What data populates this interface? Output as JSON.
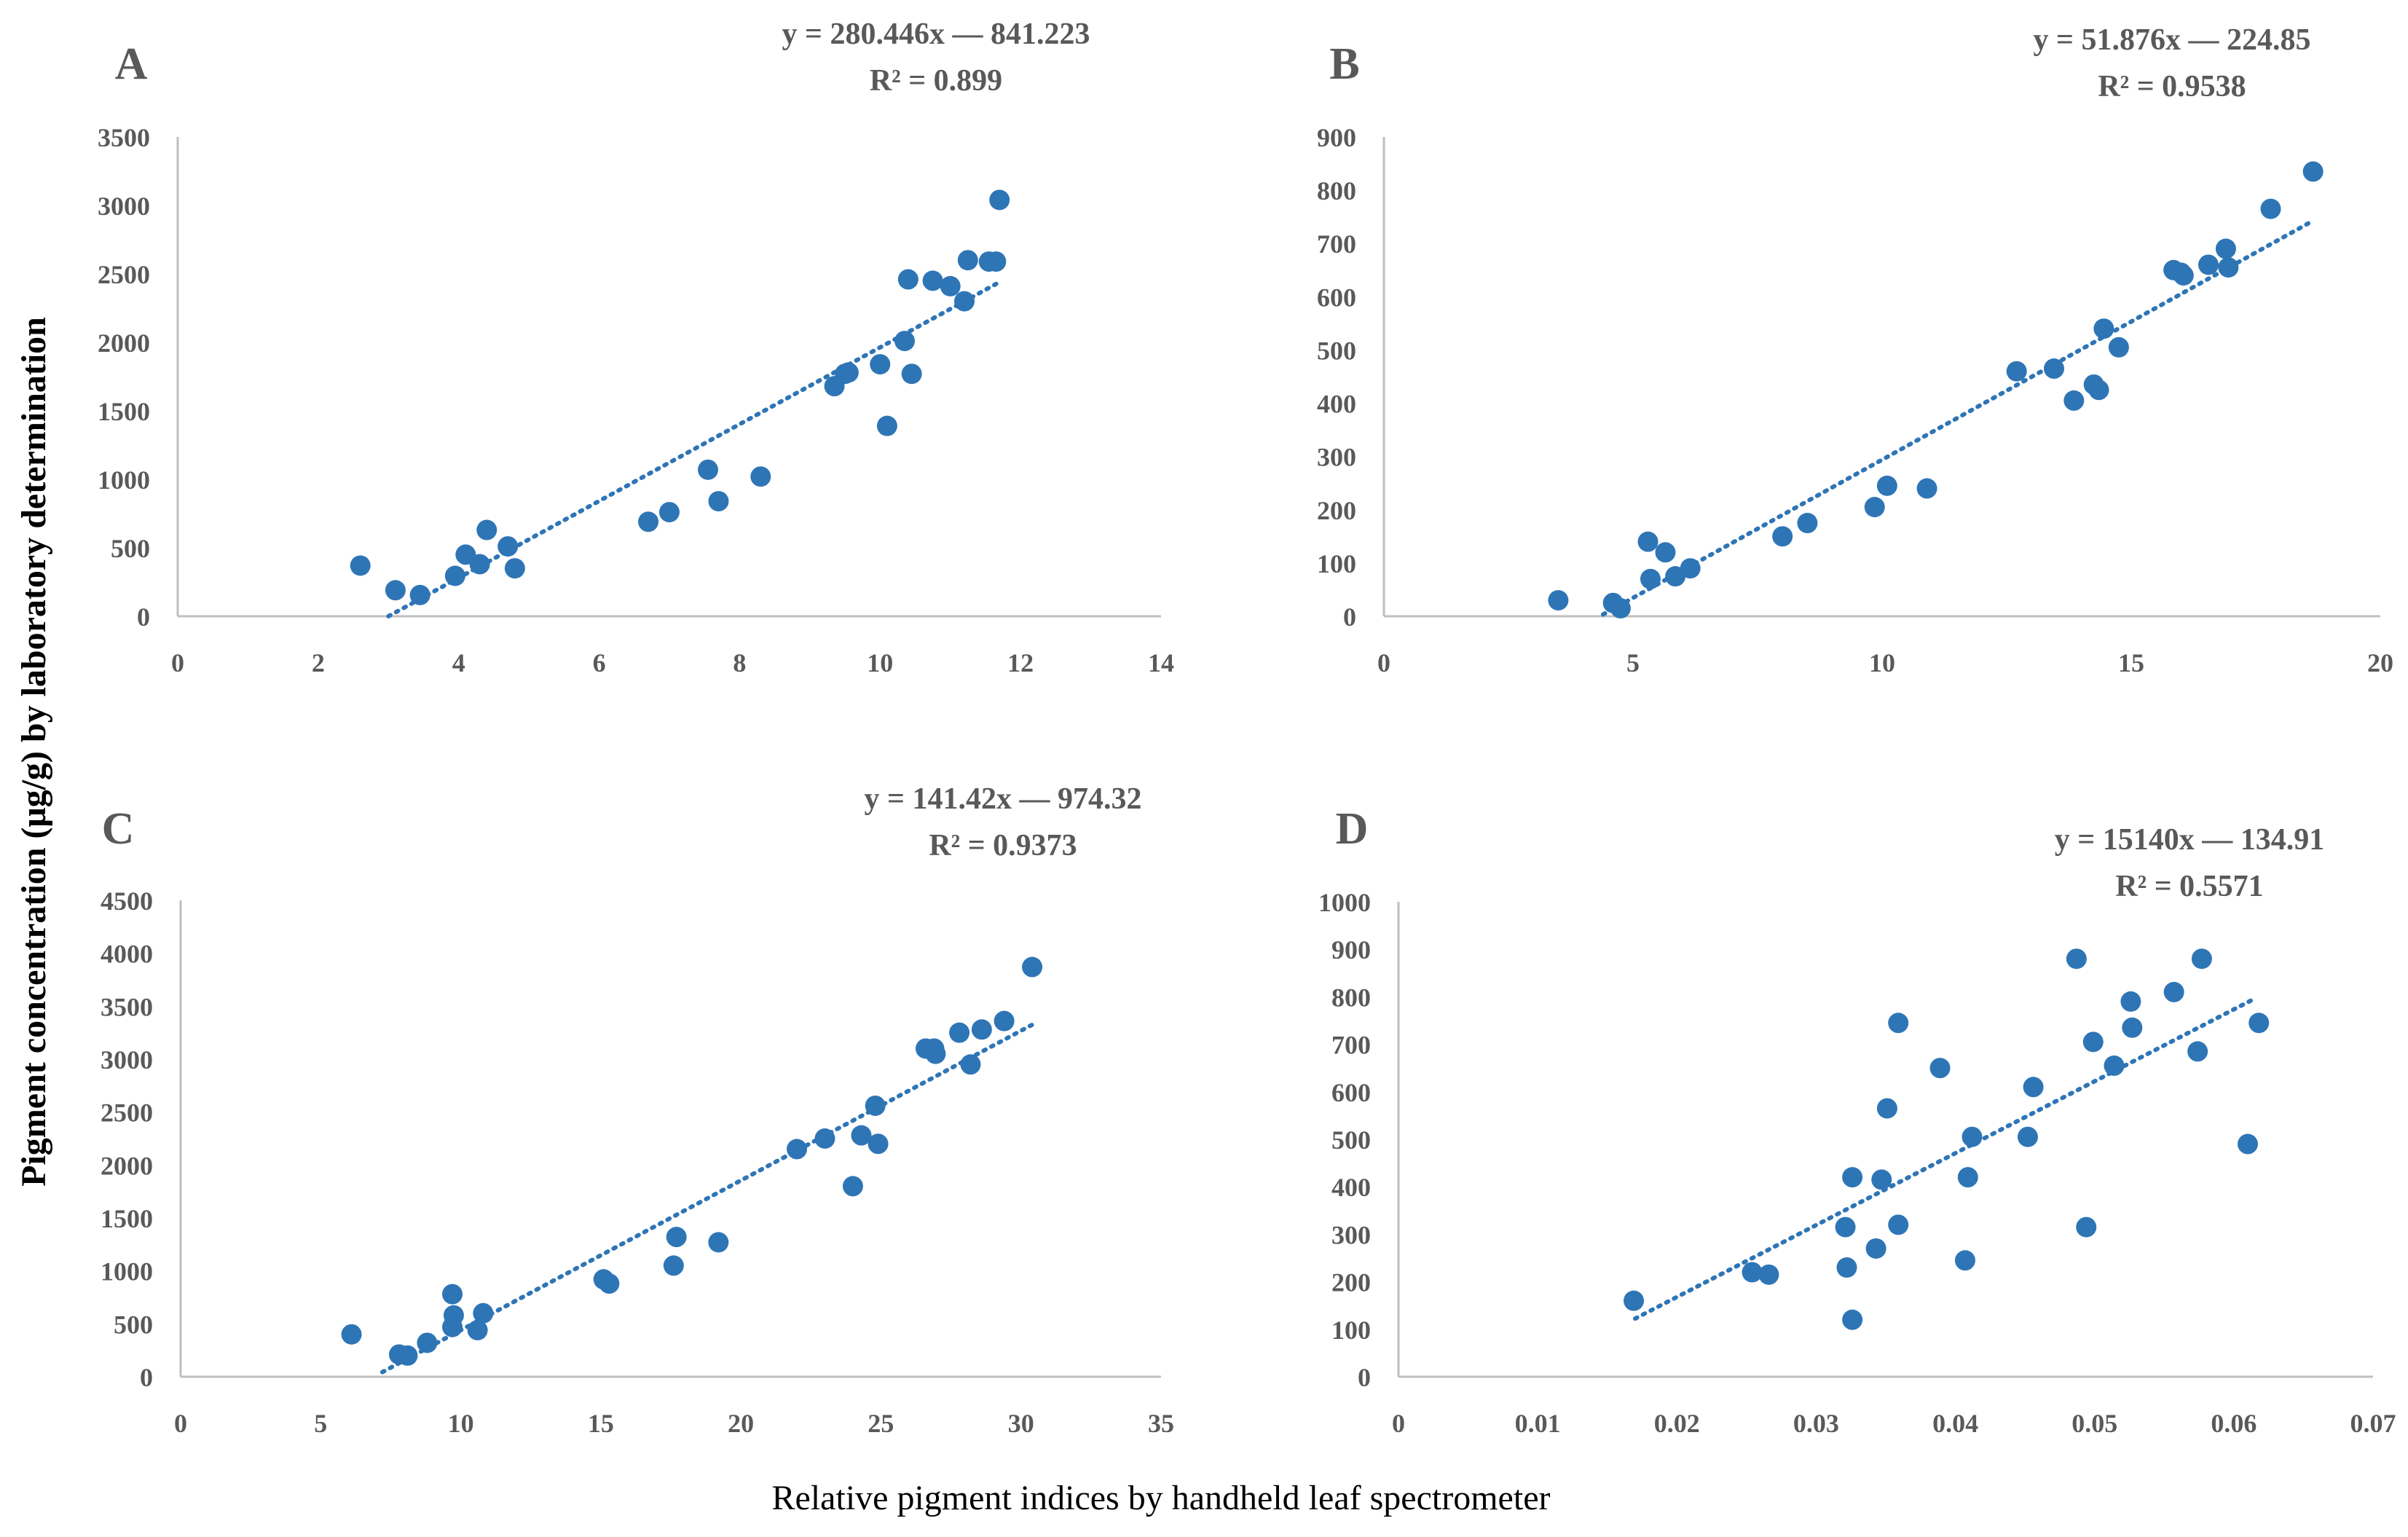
{
  "figure": {
    "shared_xlabel": "Relative pigment indices by handheld leaf spectrometer",
    "shared_ylabel": "Pigment concentration (μg/g) by laboratory determination",
    "colors": {
      "point": "#2E75B6",
      "trend": "#2E75B6",
      "axis": "#BFBFBF",
      "text": "#595959"
    }
  },
  "chart_data": [
    {
      "panel": "A",
      "type": "scatter",
      "equation": "y = 280.446x — 841.223",
      "r2": "R² = 0.899",
      "xlim": [
        0,
        14
      ],
      "ylim": [
        0,
        3500
      ],
      "xticks": [
        "0",
        "2",
        "4",
        "6",
        "8",
        "10",
        "12",
        "14"
      ],
      "yticks": [
        "0",
        "500",
        "1000",
        "1500",
        "2000",
        "2500",
        "3000",
        "3500"
      ],
      "trendline": {
        "slope": 280.446,
        "intercept": -841.223,
        "x_range": [
          3.0,
          11.7
        ]
      },
      "points": [
        [
          2.6,
          370
        ],
        [
          3.1,
          190
        ],
        [
          3.45,
          155
        ],
        [
          3.95,
          295
        ],
        [
          4.1,
          450
        ],
        [
          4.3,
          380
        ],
        [
          4.4,
          630
        ],
        [
          4.7,
          510
        ],
        [
          4.8,
          350
        ],
        [
          6.7,
          690
        ],
        [
          7.0,
          760
        ],
        [
          7.55,
          1070
        ],
        [
          7.7,
          840
        ],
        [
          8.3,
          1020
        ],
        [
          9.35,
          1680
        ],
        [
          9.5,
          1770
        ],
        [
          9.55,
          1780
        ],
        [
          10.0,
          1840
        ],
        [
          10.1,
          1390
        ],
        [
          10.35,
          2010
        ],
        [
          10.45,
          1770
        ],
        [
          10.4,
          2460
        ],
        [
          10.75,
          2450
        ],
        [
          11.0,
          2410
        ],
        [
          11.2,
          2300
        ],
        [
          11.25,
          2600
        ],
        [
          11.55,
          2590
        ],
        [
          11.65,
          2590
        ],
        [
          11.7,
          3040
        ]
      ]
    },
    {
      "panel": "B",
      "type": "scatter",
      "equation": "y = 51.876x — 224.85",
      "r2": "R² = 0.9538",
      "xlim": [
        0,
        20
      ],
      "ylim": [
        0,
        900
      ],
      "xticks": [
        "0",
        "5",
        "10",
        "15",
        "20"
      ],
      "yticks": [
        "0",
        "100",
        "200",
        "300",
        "400",
        "500",
        "600",
        "700",
        "800",
        "900"
      ],
      "trendline": {
        "slope": 51.876,
        "intercept": -224.85,
        "x_range": [
          4.4,
          18.6
        ]
      },
      "points": [
        [
          3.5,
          30
        ],
        [
          4.6,
          25
        ],
        [
          4.75,
          15
        ],
        [
          5.3,
          140
        ],
        [
          5.35,
          70
        ],
        [
          5.65,
          120
        ],
        [
          5.85,
          75
        ],
        [
          6.15,
          90
        ],
        [
          8.0,
          150
        ],
        [
          8.5,
          175
        ],
        [
          9.85,
          205
        ],
        [
          10.1,
          245
        ],
        [
          10.9,
          240
        ],
        [
          12.7,
          460
        ],
        [
          13.45,
          465
        ],
        [
          13.85,
          405
        ],
        [
          14.25,
          435
        ],
        [
          14.35,
          425
        ],
        [
          14.45,
          540
        ],
        [
          14.75,
          505
        ],
        [
          15.85,
          650
        ],
        [
          16.0,
          645
        ],
        [
          16.05,
          640
        ],
        [
          16.55,
          660
        ],
        [
          16.9,
          690
        ],
        [
          16.95,
          655
        ],
        [
          17.8,
          765
        ],
        [
          18.65,
          835
        ]
      ]
    },
    {
      "panel": "C",
      "type": "scatter",
      "equation": "y = 141.42x — 974.32",
      "r2": "R² = 0.9373",
      "xlim": [
        0,
        35
      ],
      "ylim": [
        0,
        4500
      ],
      "xticks": [
        "0",
        "5",
        "10",
        "15",
        "20",
        "25",
        "30",
        "35"
      ],
      "yticks": [
        "0",
        "500",
        "1000",
        "1500",
        "2000",
        "2500",
        "3000",
        "3500",
        "4000",
        "4500"
      ],
      "trendline": {
        "slope": 141.42,
        "intercept": -974.32,
        "x_range": [
          7.2,
          30.4
        ]
      },
      "points": [
        [
          6.1,
          400
        ],
        [
          7.8,
          210
        ],
        [
          8.1,
          200
        ],
        [
          8.8,
          320
        ],
        [
          9.7,
          780
        ],
        [
          9.75,
          580
        ],
        [
          9.7,
          470
        ],
        [
          10.6,
          440
        ],
        [
          10.8,
          600
        ],
        [
          15.1,
          920
        ],
        [
          15.3,
          880
        ],
        [
          17.6,
          1050
        ],
        [
          17.7,
          1320
        ],
        [
          19.2,
          1270
        ],
        [
          22.0,
          2150
        ],
        [
          23.0,
          2250
        ],
        [
          24.0,
          1800
        ],
        [
          24.3,
          2280
        ],
        [
          24.8,
          2560
        ],
        [
          24.9,
          2200
        ],
        [
          26.6,
          3100
        ],
        [
          26.9,
          3100
        ],
        [
          26.95,
          3050
        ],
        [
          27.8,
          3250
        ],
        [
          28.2,
          2950
        ],
        [
          28.6,
          3280
        ],
        [
          29.4,
          3360
        ],
        [
          30.4,
          3870
        ]
      ]
    },
    {
      "panel": "D",
      "type": "scatter",
      "equation": "y = 15140x — 134.91",
      "r2": "R² = 0.5571",
      "xlim": [
        0,
        0.07
      ],
      "ylim": [
        0,
        1000
      ],
      "xticks": [
        "0",
        "0.01",
        "0.02",
        "0.03",
        "0.04",
        "0.05",
        "0.06",
        "0.07"
      ],
      "yticks": [
        "0",
        "100",
        "200",
        "300",
        "400",
        "500",
        "600",
        "700",
        "800",
        "900",
        "1000"
      ],
      "trendline": {
        "slope": 15140,
        "intercept": -134.91,
        "x_range": [
          0.017,
          0.0615
        ]
      },
      "points": [
        [
          0.0169,
          160
        ],
        [
          0.0254,
          220
        ],
        [
          0.0266,
          215
        ],
        [
          0.0321,
          315
        ],
        [
          0.0322,
          230
        ],
        [
          0.0326,
          420
        ],
        [
          0.0326,
          120
        ],
        [
          0.0343,
          270
        ],
        [
          0.0347,
          415
        ],
        [
          0.0351,
          565
        ],
        [
          0.0359,
          320
        ],
        [
          0.0359,
          745
        ],
        [
          0.0389,
          650
        ],
        [
          0.0407,
          245
        ],
        [
          0.0409,
          420
        ],
        [
          0.0412,
          505
        ],
        [
          0.0452,
          505
        ],
        [
          0.0456,
          610
        ],
        [
          0.0487,
          880
        ],
        [
          0.0494,
          315
        ],
        [
          0.0499,
          705
        ],
        [
          0.0514,
          655
        ],
        [
          0.0526,
          790
        ],
        [
          0.0527,
          735
        ],
        [
          0.0557,
          810
        ],
        [
          0.0574,
          685
        ],
        [
          0.0577,
          880
        ],
        [
          0.061,
          490
        ],
        [
          0.0618,
          745
        ]
      ]
    }
  ]
}
